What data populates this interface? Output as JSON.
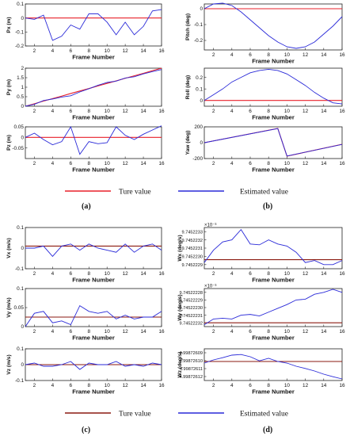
{
  "legend": {
    "true_label_top": "Ture value",
    "est_label_top": "Estimated value",
    "true_label_bottom": "Ture value",
    "est_label_bottom": "Estimated value",
    "colors": {
      "true": "#e8202a",
      "true_bottom": "#8b1a10",
      "estimated": "#2a2ad8"
    }
  },
  "captions": [
    "(a)",
    "(b)",
    "(c)",
    "(d)"
  ],
  "chart_data": [
    {
      "type": "line",
      "panel": "a",
      "ylabel": "Px (m)",
      "xlabel": "Frame Number",
      "xlim": [
        1,
        16
      ],
      "xticks": [
        "2",
        "4",
        "6",
        "8",
        "10",
        "12",
        "14",
        "16"
      ],
      "ylim": [
        -0.2,
        0.1
      ],
      "yticks": [
        "-0.2",
        "-0.1",
        "0",
        "0.1"
      ],
      "x": [
        1,
        2,
        3,
        4,
        5,
        6,
        7,
        8,
        9,
        10,
        11,
        12,
        13,
        14,
        15,
        16
      ],
      "series": [
        {
          "name": "Ture value",
          "values": [
            0,
            0,
            0,
            0,
            0,
            0,
            0,
            0,
            0,
            0,
            0,
            0,
            0,
            0,
            0,
            0
          ]
        },
        {
          "name": "Estimated value",
          "values": [
            0.0,
            -0.01,
            0.02,
            -0.16,
            -0.13,
            -0.05,
            -0.08,
            0.03,
            0.03,
            -0.03,
            -0.12,
            -0.03,
            -0.12,
            -0.06,
            0.05,
            0.06
          ]
        }
      ]
    },
    {
      "type": "line",
      "panel": "a",
      "ylabel": "Py (m)",
      "xlabel": "Frame Number",
      "xlim": [
        1,
        16
      ],
      "xticks": [
        "2",
        "4",
        "6",
        "8",
        "10",
        "12",
        "14",
        "16"
      ],
      "ylim": [
        0,
        2
      ],
      "yticks": [
        "0",
        "0.5",
        "1",
        "1.5",
        "2"
      ],
      "x": [
        1,
        2,
        3,
        4,
        5,
        6,
        7,
        8,
        9,
        10,
        11,
        12,
        13,
        14,
        15,
        16
      ],
      "series": [
        {
          "name": "Ture value",
          "values": [
            0,
            0.13,
            0.27,
            0.4,
            0.53,
            0.67,
            0.8,
            0.93,
            1.07,
            1.2,
            1.33,
            1.47,
            1.6,
            1.73,
            1.87,
            2.0
          ]
        },
        {
          "name": "Estimated value",
          "values": [
            0.0,
            0.1,
            0.3,
            0.38,
            0.48,
            0.55,
            0.75,
            0.92,
            1.1,
            1.25,
            1.32,
            1.48,
            1.55,
            1.7,
            1.82,
            1.93
          ]
        }
      ]
    },
    {
      "type": "line",
      "panel": "a",
      "ylabel": "Pz (m)",
      "xlabel": "Frame Number",
      "xlim": [
        1,
        16
      ],
      "xticks": [
        "2",
        "4",
        "6",
        "8",
        "10",
        "12",
        "14",
        "16"
      ],
      "ylim": [
        -0.1,
        0.05
      ],
      "yticks": [
        "-0.05",
        "0",
        "0.05"
      ],
      "x": [
        1,
        2,
        3,
        4,
        5,
        6,
        7,
        8,
        9,
        10,
        11,
        12,
        13,
        14,
        15,
        16
      ],
      "series": [
        {
          "name": "Ture value",
          "values": [
            0,
            0,
            0,
            0,
            0,
            0,
            0,
            0,
            0,
            0,
            0,
            0,
            0,
            0,
            0,
            0
          ]
        },
        {
          "name": "Estimated value",
          "values": [
            0.0,
            0.02,
            -0.01,
            -0.035,
            -0.02,
            0.05,
            -0.08,
            -0.02,
            -0.03,
            -0.025,
            0.05,
            0.01,
            -0.01,
            0.015,
            0.035,
            0.055
          ]
        }
      ]
    },
    {
      "type": "line",
      "panel": "b",
      "ylabel": "Pitch (deg)",
      "xlabel": "Frame Number",
      "xlim": [
        1,
        16
      ],
      "xticks": [
        "2",
        "4",
        "6",
        "8",
        "10",
        "12",
        "14",
        "16"
      ],
      "ylim": [
        -0.26,
        0.03
      ],
      "yticks": [
        "-0.2",
        "-0.1",
        "0"
      ],
      "x": [
        1,
        2,
        3,
        4,
        5,
        6,
        7,
        8,
        9,
        10,
        11,
        12,
        13,
        14,
        15,
        16
      ],
      "series": [
        {
          "name": "Ture value",
          "values": [
            0,
            0,
            0,
            0,
            0,
            0,
            0,
            0,
            0,
            0,
            0,
            0,
            0,
            0,
            0,
            0
          ]
        },
        {
          "name": "Estimated value",
          "values": [
            0.0,
            0.03,
            0.035,
            0.02,
            -0.02,
            -0.07,
            -0.12,
            -0.17,
            -0.21,
            -0.24,
            -0.25,
            -0.24,
            -0.21,
            -0.16,
            -0.11,
            -0.05
          ]
        }
      ]
    },
    {
      "type": "line",
      "panel": "b",
      "ylabel": "Roll (deg)",
      "xlabel": "Frame Number",
      "xlim": [
        1,
        16
      ],
      "xticks": [
        "2",
        "4",
        "6",
        "8",
        "10",
        "12",
        "14",
        "16"
      ],
      "ylim": [
        -0.05,
        0.28
      ],
      "yticks": [
        "0",
        "0.1",
        "0.2"
      ],
      "x": [
        1,
        2,
        3,
        4,
        5,
        6,
        7,
        8,
        9,
        10,
        11,
        12,
        13,
        14,
        15,
        16
      ],
      "series": [
        {
          "name": "Ture value",
          "values": [
            0,
            0,
            0,
            0,
            0,
            0,
            0,
            0,
            0,
            0,
            0,
            0,
            0,
            0,
            0,
            0
          ]
        },
        {
          "name": "Estimated value",
          "values": [
            0.0,
            0.05,
            0.1,
            0.16,
            0.2,
            0.24,
            0.26,
            0.27,
            0.26,
            0.23,
            0.18,
            0.13,
            0.07,
            0.02,
            -0.02,
            -0.03
          ]
        }
      ]
    },
    {
      "type": "line",
      "panel": "b",
      "ylabel": "Yaw (deg)",
      "xlabel": "Frame Number",
      "xlim": [
        1,
        16
      ],
      "xticks": [
        "2",
        "4",
        "6",
        "8",
        "10",
        "12",
        "14",
        "16"
      ],
      "ylim": [
        -200,
        200
      ],
      "yticks": [
        "-200",
        "0",
        "200"
      ],
      "x": [
        1,
        9,
        10,
        16
      ],
      "series": [
        {
          "name": "Ture value",
          "values": [
            0,
            180,
            -170,
            -20
          ]
        },
        {
          "name": "Estimated value",
          "values": [
            0,
            178,
            -168,
            -22
          ]
        }
      ]
    },
    {
      "type": "line",
      "panel": "c",
      "ylabel": "Vx (m/s)",
      "xlabel": "Frame Number",
      "xlim": [
        1,
        16
      ],
      "xticks": [
        "2",
        "4",
        "6",
        "8",
        "10",
        "12",
        "14",
        "16"
      ],
      "ylim": [
        -0.1,
        0.1
      ],
      "yticks": [
        "-0.1",
        "0",
        "0.1"
      ],
      "x": [
        1,
        2,
        3,
        4,
        5,
        6,
        7,
        8,
        9,
        10,
        11,
        12,
        13,
        14,
        15,
        16
      ],
      "series": [
        {
          "name": "Ture value",
          "values": [
            0.01,
            0.01,
            0.01,
            0.01,
            0.01,
            0.01,
            0.01,
            0.01,
            0.01,
            0.01,
            0.01,
            0.01,
            0.01,
            0.01,
            0.01,
            0.01
          ]
        },
        {
          "name": "Estimated value",
          "values": [
            0.0,
            0.0,
            0.01,
            -0.04,
            0.01,
            0.02,
            -0.01,
            0.02,
            0.0,
            -0.01,
            -0.02,
            0.02,
            -0.02,
            0.01,
            0.02,
            -0.01
          ]
        }
      ]
    },
    {
      "type": "line",
      "panel": "c",
      "ylabel": "Vy (m/s)",
      "xlabel": "Frame Number",
      "xlim": [
        1,
        16
      ],
      "xticks": [
        "2",
        "4",
        "6",
        "8",
        "10",
        "12",
        "14",
        "16"
      ],
      "ylim": [
        0,
        0.1
      ],
      "yticks": [
        "0",
        "0.05",
        "0.1"
      ],
      "x": [
        1,
        2,
        3,
        4,
        5,
        6,
        7,
        8,
        9,
        10,
        11,
        12,
        13,
        14,
        15,
        16
      ],
      "series": [
        {
          "name": "Ture value",
          "values": [
            0.025,
            0.025,
            0.025,
            0.025,
            0.025,
            0.025,
            0.025,
            0.025,
            0.025,
            0.025,
            0.025,
            0.025,
            0.025,
            0.025,
            0.025,
            0.025
          ]
        },
        {
          "name": "Estimated value",
          "values": [
            0.0,
            0.035,
            0.04,
            0.01,
            0.015,
            0.005,
            0.055,
            0.04,
            0.035,
            0.04,
            0.02,
            0.03,
            0.02,
            0.025,
            0.025,
            0.04
          ]
        }
      ]
    },
    {
      "type": "line",
      "panel": "c",
      "ylabel": "Vz (m/s)",
      "xlabel": "Frame Number",
      "xlim": [
        1,
        16
      ],
      "xticks": [
        "2",
        "4",
        "6",
        "8",
        "10",
        "12",
        "14",
        "16"
      ],
      "ylim": [
        -0.1,
        0.1
      ],
      "yticks": [
        "-0.1",
        "0",
        "0.1"
      ],
      "x": [
        1,
        2,
        3,
        4,
        5,
        6,
        7,
        8,
        9,
        10,
        11,
        12,
        13,
        14,
        15,
        16
      ],
      "series": [
        {
          "name": "Ture value",
          "values": [
            0,
            0,
            0,
            0,
            0,
            0,
            0,
            0,
            0,
            0,
            0,
            0,
            0,
            0,
            0,
            0
          ]
        },
        {
          "name": "Estimated value",
          "values": [
            0.0,
            0.01,
            -0.01,
            -0.01,
            0.0,
            0.02,
            -0.03,
            0.01,
            0.0,
            0.0,
            0.02,
            -0.01,
            0.0,
            -0.01,
            0.01,
            0.0
          ]
        }
      ]
    },
    {
      "type": "line",
      "panel": "d",
      "ylabel": "Wx (deg/s)",
      "xlabel": "Frame Number",
      "multiplier": "×10⁻³",
      "xlim": [
        1,
        16
      ],
      "xticks": [
        "2",
        "4",
        "6",
        "8",
        "10",
        "12",
        "14",
        "16"
      ],
      "ylim": [
        0,
        1
      ],
      "yticks": [
        "9.7452229",
        "9.7452230",
        "9.7452231",
        "9.7452232",
        "9.7452233"
      ],
      "x": [
        1,
        2,
        3,
        4,
        5,
        6,
        7,
        8,
        9,
        10,
        11,
        12,
        13,
        14,
        15,
        16
      ],
      "series": [
        {
          "name": "Ture value",
          "values": [
            0.22,
            0.22,
            0.22,
            0.22,
            0.22,
            0.22,
            0.22,
            0.22,
            0.22,
            0.22,
            0.22,
            0.22,
            0.22,
            0.22,
            0.22,
            0.22
          ]
        },
        {
          "name": "Estimated value",
          "values": [
            0.15,
            0.45,
            0.65,
            0.7,
            0.95,
            0.6,
            0.58,
            0.7,
            0.6,
            0.55,
            0.4,
            0.15,
            0.2,
            0.1,
            0.1,
            0.2
          ]
        }
      ]
    },
    {
      "type": "line",
      "panel": "d",
      "ylabel": "Wy (deg/s)",
      "xlabel": "Frame Number",
      "multiplier": "×10⁻³",
      "xlim": [
        1,
        16
      ],
      "xticks": [
        "2",
        "4",
        "6",
        "8",
        "10",
        "12",
        "14",
        "16"
      ],
      "ylim": [
        0,
        1
      ],
      "yticks": [
        "9.74522232",
        "9.74522231",
        "9.74522230",
        "9.74522229",
        "9.74522228"
      ],
      "x": [
        1,
        2,
        3,
        4,
        5,
        6,
        7,
        8,
        9,
        10,
        11,
        12,
        13,
        14,
        15,
        16
      ],
      "series": [
        {
          "name": "Ture value",
          "values": [
            0.1,
            0.1,
            0.1,
            0.1,
            0.1,
            0.1,
            0.1,
            0.1,
            0.1,
            0.1,
            0.1,
            0.1,
            0.1,
            0.1,
            0.1,
            0.1
          ]
        },
        {
          "name": "Estimated value",
          "values": [
            0.05,
            0.2,
            0.22,
            0.2,
            0.3,
            0.32,
            0.28,
            0.38,
            0.48,
            0.58,
            0.7,
            0.72,
            0.85,
            0.9,
            0.98,
            0.9
          ]
        }
      ]
    },
    {
      "type": "line",
      "panel": "d",
      "ylabel": "Wz (deg/s)",
      "xlabel": "Frame Number",
      "xlim": [
        1,
        16
      ],
      "xticks": [
        "2",
        "4",
        "6",
        "8",
        "10",
        "12",
        "14",
        "16"
      ],
      "ylim": [
        0,
        1
      ],
      "yticks": [
        "4.99872612",
        "4.99872611",
        "4.99872610",
        "4.99872609"
      ],
      "x": [
        1,
        2,
        3,
        4,
        5,
        6,
        7,
        8,
        9,
        10,
        11,
        12,
        13,
        14,
        15,
        16
      ],
      "series": [
        {
          "name": "Ture value",
          "values": [
            0.6,
            0.6,
            0.6,
            0.6,
            0.6,
            0.6,
            0.6,
            0.6,
            0.6,
            0.6,
            0.6,
            0.6,
            0.6,
            0.6,
            0.6,
            0.6
          ]
        },
        {
          "name": "Estimated value",
          "values": [
            0.55,
            0.65,
            0.72,
            0.8,
            0.82,
            0.75,
            0.62,
            0.7,
            0.6,
            0.55,
            0.45,
            0.38,
            0.3,
            0.2,
            0.12,
            0.05
          ]
        }
      ]
    }
  ]
}
